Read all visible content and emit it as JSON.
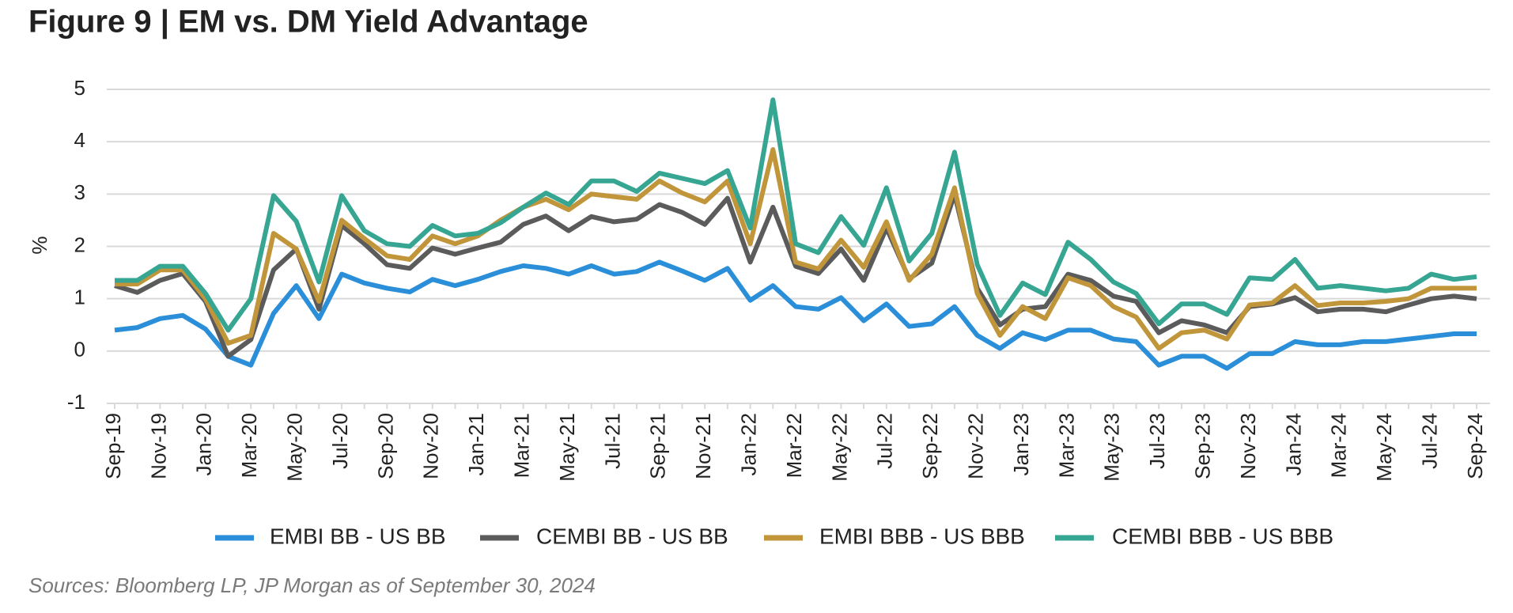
{
  "chart_data": {
    "type": "line",
    "title": "Figure 9  |  EM vs. DM Yield Advantage",
    "y_label": "%",
    "source": "Sources: Bloomberg LP, JP Morgan as of September 30, 2024",
    "categories": [
      "Sep-19",
      null,
      "Nov-19",
      null,
      "Jan-20",
      null,
      "Mar-20",
      null,
      "May-20",
      null,
      "Jul-20",
      null,
      "Sep-20",
      null,
      "Nov-20",
      null,
      "Jan-21",
      null,
      "Mar-21",
      null,
      "May-21",
      null,
      "Jul-21",
      null,
      "Sep-21",
      null,
      "Nov-21",
      null,
      "Jan-22",
      null,
      "Mar-22",
      null,
      "May-22",
      null,
      "Jul-22",
      null,
      "Sep-22",
      null,
      "Nov-22",
      null,
      "Jan-23",
      null,
      "Mar-23",
      null,
      "May-23",
      null,
      "Jul-23",
      null,
      "Sep-23",
      null,
      "Nov-23",
      null,
      "Jan-24",
      null,
      "Mar-24",
      null,
      "May-24",
      null,
      "Jul-24",
      null,
      "Sep-24"
    ],
    "series": [
      {
        "name": "EMBI BB - US BB",
        "color": "#2a8fd8",
        "values": [
          0.4,
          0.45,
          0.62,
          0.68,
          0.42,
          -0.1,
          -0.27,
          0.72,
          1.25,
          0.62,
          1.47,
          1.3,
          1.2,
          1.13,
          1.37,
          1.25,
          1.37,
          1.52,
          1.63,
          1.58,
          1.47,
          1.63,
          1.47,
          1.52,
          1.7,
          1.53,
          1.35,
          1.58,
          0.97,
          1.25,
          0.85,
          0.8,
          1.02,
          0.58,
          0.9,
          0.47,
          0.52,
          0.85,
          0.3,
          0.05,
          0.35,
          0.22,
          0.4,
          0.4,
          0.23,
          0.18,
          -0.27,
          -0.1,
          -0.1,
          -0.33,
          -0.05,
          -0.05,
          0.18,
          0.12,
          0.12,
          0.18,
          0.18,
          0.23,
          0.28,
          0.33,
          0.33
        ]
      },
      {
        "name": "CEMBI BB - US BB",
        "color": "#5b5b5b",
        "values": [
          1.25,
          1.12,
          1.35,
          1.48,
          0.95,
          -0.1,
          0.22,
          1.55,
          1.95,
          0.8,
          2.4,
          2.05,
          1.65,
          1.58,
          1.97,
          1.85,
          1.97,
          2.08,
          2.42,
          2.58,
          2.3,
          2.57,
          2.47,
          2.52,
          2.8,
          2.65,
          2.42,
          2.92,
          1.7,
          2.75,
          1.62,
          1.48,
          1.95,
          1.35,
          2.35,
          1.38,
          1.68,
          3.0,
          1.2,
          0.5,
          0.8,
          0.85,
          1.47,
          1.35,
          1.05,
          0.95,
          0.35,
          0.58,
          0.5,
          0.35,
          0.85,
          0.9,
          1.02,
          0.75,
          0.8,
          0.8,
          0.75,
          0.88,
          1.0,
          1.05,
          1.0
        ]
      },
      {
        "name": "EMBI BBB - US BBB",
        "color": "#c1953a",
        "values": [
          1.28,
          1.28,
          1.55,
          1.55,
          1.0,
          0.15,
          0.3,
          2.25,
          1.95,
          0.95,
          2.5,
          2.15,
          1.82,
          1.75,
          2.2,
          2.05,
          2.2,
          2.5,
          2.75,
          2.9,
          2.7,
          3.0,
          2.95,
          2.9,
          3.25,
          3.02,
          2.85,
          3.25,
          2.05,
          3.85,
          1.7,
          1.57,
          2.12,
          1.6,
          2.47,
          1.35,
          1.85,
          3.12,
          1.1,
          0.3,
          0.85,
          0.62,
          1.4,
          1.25,
          0.85,
          0.65,
          0.05,
          0.35,
          0.4,
          0.23,
          0.88,
          0.92,
          1.25,
          0.87,
          0.92,
          0.92,
          0.95,
          1.0,
          1.2,
          1.2,
          1.2
        ]
      },
      {
        "name": "CEMBI BBB - US BBB",
        "color": "#36a693",
        "values": [
          1.35,
          1.35,
          1.62,
          1.62,
          1.1,
          0.4,
          1.0,
          2.97,
          2.48,
          1.32,
          2.97,
          2.3,
          2.05,
          2.0,
          2.4,
          2.2,
          2.25,
          2.45,
          2.75,
          3.02,
          2.8,
          3.25,
          3.25,
          3.05,
          3.4,
          3.3,
          3.2,
          3.45,
          2.35,
          4.8,
          2.05,
          1.88,
          2.57,
          2.02,
          3.12,
          1.72,
          2.25,
          3.8,
          1.65,
          0.68,
          1.3,
          1.08,
          2.08,
          1.75,
          1.32,
          1.1,
          0.52,
          0.9,
          0.9,
          0.7,
          1.4,
          1.37,
          1.75,
          1.2,
          1.25,
          1.2,
          1.15,
          1.2,
          1.47,
          1.37,
          1.42
        ]
      }
    ],
    "ylim": [
      -1,
      5
    ],
    "yticks": [
      -1,
      0,
      1,
      2,
      3,
      4,
      5
    ],
    "grid": true,
    "legend": "bottom"
  }
}
